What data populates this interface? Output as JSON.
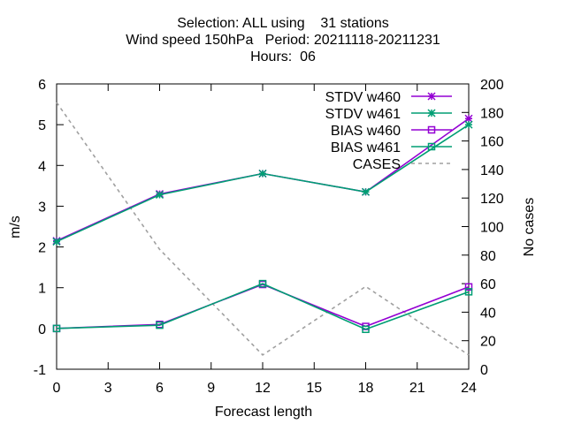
{
  "chart_data": {
    "type": "line",
    "title_lines": [
      "Selection: ALL using    31 stations",
      "Wind speed 150hPa   Period: 20211118-20211231",
      "Hours:  06"
    ],
    "xlabel": "Forecast length",
    "ylabel": "m/s",
    "y2label": "No cases",
    "xlim": [
      0,
      24
    ],
    "ylim": [
      -1,
      6
    ],
    "y2lim": [
      0,
      200
    ],
    "xticks": [
      "0",
      "3",
      "6",
      "9",
      "12",
      "15",
      "18",
      "21",
      "24"
    ],
    "yticks": [
      "-1",
      "0",
      "1",
      "2",
      "3",
      "4",
      "5",
      "6"
    ],
    "y2ticks": [
      "0",
      "20",
      "40",
      "60",
      "80",
      "100",
      "120",
      "140",
      "160",
      "180",
      "200"
    ],
    "grid": false,
    "legend_position": "top-right",
    "x": [
      0,
      6,
      12,
      18,
      24
    ],
    "series": [
      {
        "name": "STDV w460",
        "axis": "y1",
        "marker": "x-star",
        "color": "#9400d3",
        "values": [
          2.15,
          3.3,
          3.8,
          3.35,
          5.15
        ]
      },
      {
        "name": "STDV w461",
        "axis": "y1",
        "marker": "x-star",
        "color": "#009e73",
        "values": [
          2.13,
          3.28,
          3.8,
          3.35,
          5.0
        ]
      },
      {
        "name": "BIAS w460",
        "axis": "y1",
        "marker": "square",
        "color": "#9400d3",
        "values": [
          0.0,
          0.1,
          1.08,
          0.05,
          1.02
        ]
      },
      {
        "name": "BIAS w461",
        "axis": "y1",
        "marker": "square",
        "color": "#009e73",
        "values": [
          0.0,
          0.08,
          1.1,
          -0.02,
          0.9
        ]
      },
      {
        "name": "CASES",
        "axis": "y2",
        "marker": "none",
        "color": "#a0a0a0",
        "dashed": true,
        "values": [
          187,
          84,
          10,
          58,
          10
        ]
      }
    ]
  }
}
